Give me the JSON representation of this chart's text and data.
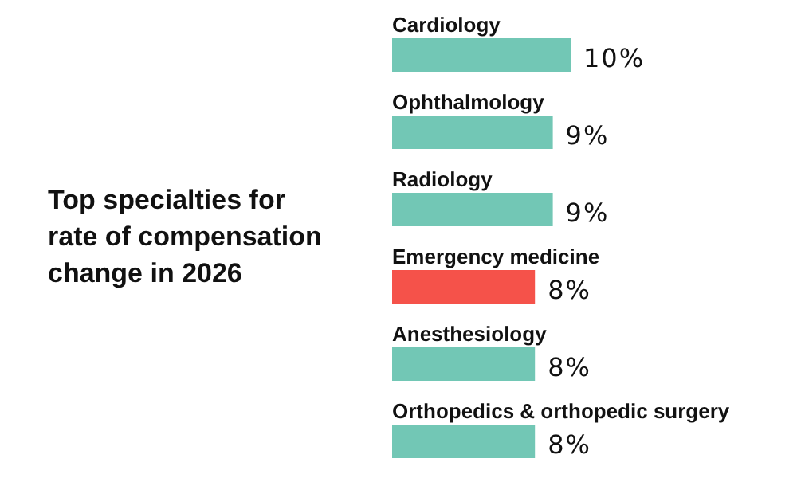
{
  "chart_data": {
    "type": "bar",
    "orientation": "horizontal",
    "title": "Top specialties for rate of compensation change in 2026",
    "categories": [
      "Cardiology",
      "Ophthalmology",
      "Radiology",
      "Emergency medicine",
      "Anesthesiology",
      "Orthopedics & orthopedic surgery"
    ],
    "values": [
      10,
      9,
      9,
      8,
      8,
      8
    ],
    "colors": [
      "#72c7b5",
      "#72c7b5",
      "#72c7b5",
      "#f5524a",
      "#72c7b5",
      "#72c7b5"
    ],
    "value_labels": [
      "10%",
      "9%",
      "9%",
      "8%",
      "8%",
      "8%"
    ]
  }
}
